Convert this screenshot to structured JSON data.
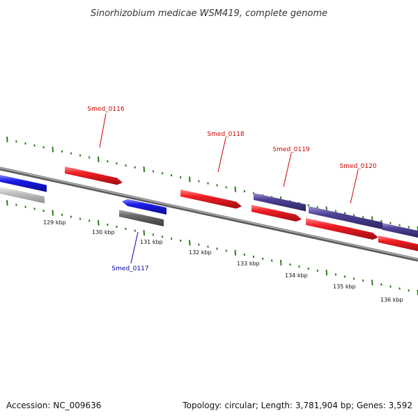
{
  "title": "Sinorhizobium medicae WSM419, complete genome",
  "footer": {
    "accession": "Accession: NC_009636",
    "summary": "Topology: circular; Length: 3,781,904 bp; Genes: 3,592"
  },
  "colors": {
    "tick": "#2e7d1e",
    "backbone": "#8a8a8a",
    "forward_gene": "#e8141b",
    "reverse_gene": "#1414e6",
    "forward_other": "#4b3f8f",
    "reverse_other": "#6a6a6a",
    "reverse_light": "#bdbdbd",
    "label_forward": "#cc0000",
    "label_reverse": "#0000aa",
    "leader": "#cc0000"
  },
  "scale": {
    "unit": "kbp",
    "tick_labels": [
      "129 kbp",
      "130 kbp",
      "131 kbp",
      "132 kbp",
      "133 kbp",
      "134 kbp",
      "135 kbp",
      "136 kbp"
    ]
  },
  "gene_labels": [
    {
      "name": "Smed_0116",
      "strand": "forward"
    },
    {
      "name": "Smed_0117",
      "strand": "reverse"
    },
    {
      "name": "Smed_0118",
      "strand": "forward"
    },
    {
      "name": "Smed_0119",
      "strand": "forward"
    },
    {
      "name": "Smed_0120",
      "strand": "forward"
    }
  ]
}
